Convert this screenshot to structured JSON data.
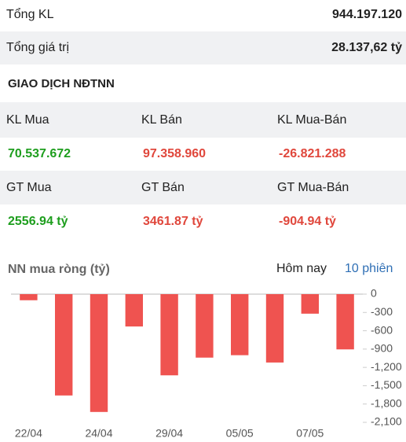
{
  "summary": [
    {
      "label": "Tổng KL",
      "value": "944.197.120"
    },
    {
      "label": "Tổng giá trị",
      "value": "28.137,62 tỷ"
    }
  ],
  "section_title": "GIAO DỊCH NĐTNN",
  "stats": [
    [
      {
        "label": "KL Mua",
        "value": "70.537.672",
        "color": "#1e9e1e"
      },
      {
        "label": "KL Bán",
        "value": "97.358.960",
        "color": "#e0473c"
      },
      {
        "label": "KL Mua-Bán",
        "value": "-26.821.288",
        "color": "#e0473c"
      }
    ],
    [
      {
        "label": "GT Mua",
        "value": "2556.94 tỷ",
        "color": "#1e9e1e"
      },
      {
        "label": "GT Bán",
        "value": "3461.87 tỷ",
        "color": "#e0473c"
      },
      {
        "label": "GT Mua-Bán",
        "value": "-904.94 tỷ",
        "color": "#e0473c"
      }
    ]
  ],
  "chart_data": {
    "type": "bar",
    "title": "NN mua ròng (tỷ)",
    "tabs": [
      {
        "label": "Hôm nay",
        "active": false
      },
      {
        "label": "10 phiên",
        "active": true
      }
    ],
    "categories": [
      "22/04",
      null,
      "24/04",
      null,
      "29/04",
      null,
      "05/05",
      null,
      "07/05",
      null
    ],
    "values": [
      -100,
      -1660,
      -1930,
      -530,
      -1330,
      -1040,
      -1000,
      -1120,
      -320,
      -905
    ],
    "color": "#ef5350",
    "ylim": [
      -2100,
      0
    ],
    "yticks": [
      0,
      -300,
      -600,
      -900,
      {
        "value": -1200,
        "label": "-1,200"
      },
      {
        "value": -1500,
        "label": "-1,500"
      },
      {
        "value": -1800,
        "label": "-1,800"
      },
      {
        "value": -2100,
        "label": "-2,100"
      }
    ]
  }
}
